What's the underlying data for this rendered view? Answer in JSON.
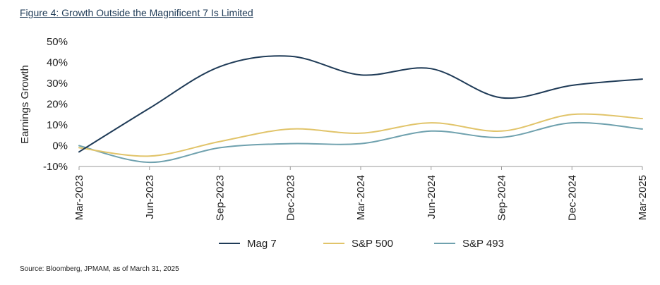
{
  "figure": {
    "title": "Figure 4: Growth Outside the Magnificent 7 Is Limited",
    "source": "Source: Bloomberg, JPMAM, as of March 31, 2025"
  },
  "chart_data": {
    "type": "line",
    "title": "Figure 4: Growth Outside the Magnificent 7 Is Limited",
    "ylabel": "Earnings Growth",
    "xlabel": "",
    "ylim": [
      -10,
      50
    ],
    "yticks": [
      -10,
      0,
      10,
      20,
      30,
      40,
      50
    ],
    "ytick_labels": [
      "-10%",
      "0%",
      "10%",
      "20%",
      "30%",
      "40%",
      "50%"
    ],
    "x": [
      "Mar-2023",
      "Jun-2023",
      "Sep-2023",
      "Dec-2023",
      "Mar-2024",
      "Jun-2024",
      "Sep-2024",
      "Dec-2024",
      "Mar-2025"
    ],
    "xtick_labels": [
      "Mar-2023",
      "Jun-2023",
      "Sep-2023",
      "Dec-2023",
      "Mar-2024",
      "Jun-2024",
      "Sep-2024",
      "Dec-2024",
      "Mar-2025"
    ],
    "series": [
      {
        "name": "Mag 7",
        "color": "#1f3b57",
        "values": [
          -3,
          18,
          38,
          43,
          34,
          37,
          23,
          29,
          32
        ]
      },
      {
        "name": "S&P 500",
        "color": "#e1c46a",
        "values": [
          -1,
          -5,
          2,
          8,
          6,
          11,
          7,
          15,
          13
        ]
      },
      {
        "name": "S&P 493",
        "color": "#6fa1ae",
        "values": [
          0,
          -8,
          -1,
          1,
          1,
          7,
          4,
          11,
          8
        ]
      }
    ],
    "grid": false,
    "legend": "bottom"
  }
}
